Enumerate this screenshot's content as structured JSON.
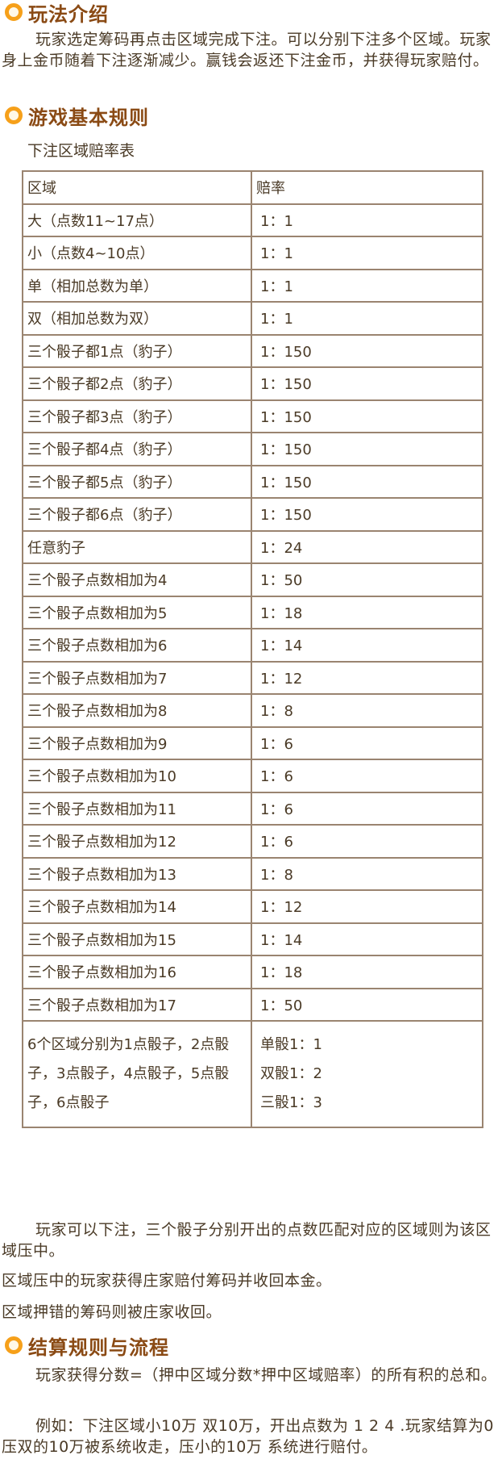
{
  "sections": [
    {
      "title": "玩法介绍"
    },
    {
      "title": "游戏基本规则"
    },
    {
      "title": "结算规则与流程"
    }
  ],
  "intro": {
    "text": "玩家选定筹码再点击区域完成下注。可以分别下注多个区域。玩家身上金币随着下注逐渐减少。赢钱会返还下注金币，并获得玩家赔付。"
  },
  "rules": {
    "caption": "下注区域赔率表",
    "header": {
      "area": "区域",
      "rate": "赔率"
    },
    "rows": [
      {
        "area": "大（点数11~17点）",
        "rate": "1：1"
      },
      {
        "area": "小（点数4~10点）",
        "rate": "1：1"
      },
      {
        "area": "单（相加总数为单）",
        "rate": "1：1"
      },
      {
        "area": "双（相加总数为双）",
        "rate": "1：1"
      },
      {
        "area": "三个骰子都1点（豹子）",
        "rate": "1：150"
      },
      {
        "area": "三个骰子都2点（豹子）",
        "rate": "1：150"
      },
      {
        "area": "三个骰子都3点（豹子）",
        "rate": "1：150"
      },
      {
        "area": "三个骰子都4点（豹子）",
        "rate": "1：150"
      },
      {
        "area": "三个骰子都5点（豹子）",
        "rate": "1：150"
      },
      {
        "area": "三个骰子都6点（豹子）",
        "rate": "1：150"
      },
      {
        "area": "任意豹子",
        "rate": "1：24"
      },
      {
        "area": "三个骰子点数相加为4",
        "rate": "1：50"
      },
      {
        "area": "三个骰子点数相加为5",
        "rate": "1：18"
      },
      {
        "area": "三个骰子点数相加为6",
        "rate": "1：14"
      },
      {
        "area": "三个骰子点数相加为7",
        "rate": "1：12"
      },
      {
        "area": "三个骰子点数相加为8",
        "rate": "1：8"
      },
      {
        "area": "三个骰子点数相加为9",
        "rate": "1：6"
      },
      {
        "area": "三个骰子点数相加为10",
        "rate": "1：6"
      },
      {
        "area": "三个骰子点数相加为11",
        "rate": "1：6"
      },
      {
        "area": "三个骰子点数相加为12",
        "rate": "1：6"
      },
      {
        "area": "三个骰子点数相加为13",
        "rate": "1：8"
      },
      {
        "area": "三个骰子点数相加为14",
        "rate": "1：12"
      },
      {
        "area": "三个骰子点数相加为15",
        "rate": "1：14"
      },
      {
        "area": "三个骰子点数相加为16",
        "rate": "1：18"
      },
      {
        "area": "三个骰子点数相加为17",
        "rate": "1：50"
      }
    ],
    "last_row": {
      "area": "6个区域分别为1点骰子，2点骰子，3点骰子，4点骰子，5点骰子，6点骰子",
      "rates": [
        "单骰1：1",
        "双骰1：2",
        "三骰1：3"
      ]
    },
    "note1": "玩家可以下注，三个骰子分别开出的点数匹配对应的区域则为该区域压中。",
    "note2": "区域压中的玩家获得庄家赔付筹码并收回本金。",
    "note3": "区域押错的筹码则被庄家收回。"
  },
  "settlement": {
    "text1": "玩家获得分数=（押中区域分数*押中区域赔率）的所有积的总和。",
    "text2": "例如：下注区域小10万 双10万，开出点数为 1 2 4 .玩家结算为0 压双的10万被系统收走，压小的10万 系统进行赔付。"
  }
}
